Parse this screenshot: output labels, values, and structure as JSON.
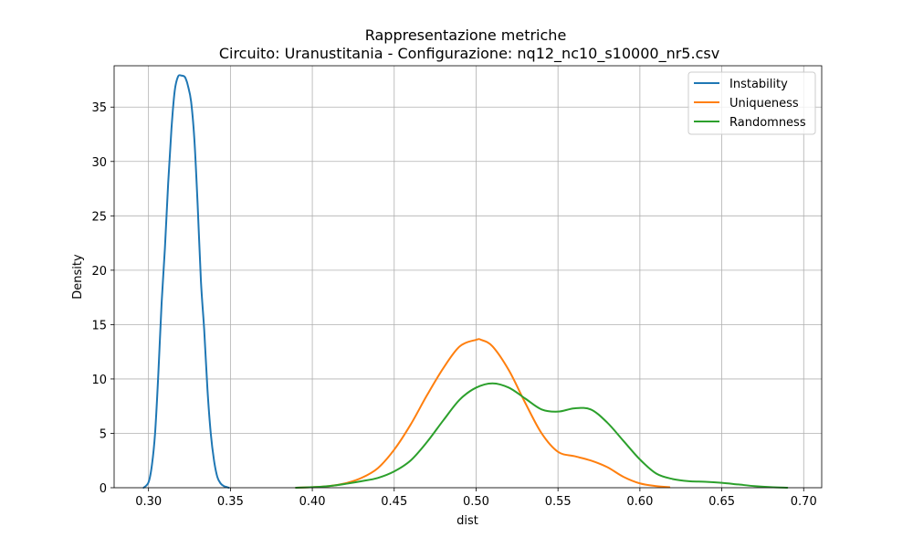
{
  "chart_data": {
    "type": "line",
    "title": "Rappresentazione metriche",
    "subtitle": "Circuito: Uranustitania - Configurazione: nq12_nc10_s10000_nr5.csv",
    "xlabel": "dist",
    "ylabel": "Density",
    "xlim": [
      0.279,
      0.711
    ],
    "ylim": [
      0,
      38.8
    ],
    "xticks": [
      0.3,
      0.35,
      0.4,
      0.45,
      0.5,
      0.55,
      0.6,
      0.65,
      0.7
    ],
    "xtick_labels": [
      "0.30",
      "0.35",
      "0.40",
      "0.45",
      "0.50",
      "0.55",
      "0.60",
      "0.65",
      "0.70"
    ],
    "yticks": [
      0,
      5,
      10,
      15,
      20,
      25,
      30,
      35
    ],
    "ytick_labels": [
      "0",
      "5",
      "10",
      "15",
      "20",
      "25",
      "30",
      "35"
    ],
    "grid": true,
    "legend_position": "top-right",
    "series": [
      {
        "name": "Instability",
        "color": "#1f77b4",
        "x": [
          0.297,
          0.3,
          0.302,
          0.304,
          0.306,
          0.308,
          0.31,
          0.312,
          0.314,
          0.316,
          0.318,
          0.32,
          0.322,
          0.323,
          0.324,
          0.326,
          0.328,
          0.33,
          0.332,
          0.334,
          0.336,
          0.338,
          0.34,
          0.342,
          0.344,
          0.346,
          0.348,
          0.349
        ],
        "y": [
          0.0,
          0.5,
          2.0,
          5.0,
          10.5,
          17.0,
          22.0,
          28.0,
          33.0,
          36.5,
          37.8,
          37.9,
          37.8,
          37.5,
          37.0,
          35.5,
          32.0,
          26.0,
          19.0,
          14.5,
          9.0,
          5.0,
          2.5,
          1.0,
          0.4,
          0.15,
          0.05,
          0.0
        ]
      },
      {
        "name": "Uniqueness",
        "color": "#ff7f0e",
        "x": [
          0.39,
          0.4,
          0.41,
          0.42,
          0.43,
          0.44,
          0.45,
          0.46,
          0.47,
          0.48,
          0.49,
          0.5,
          0.503,
          0.51,
          0.52,
          0.53,
          0.54,
          0.55,
          0.56,
          0.57,
          0.58,
          0.59,
          0.6,
          0.61,
          0.618
        ],
        "y": [
          0.0,
          0.05,
          0.15,
          0.4,
          0.9,
          1.8,
          3.5,
          5.8,
          8.5,
          11.0,
          13.0,
          13.6,
          13.6,
          13.0,
          10.8,
          7.8,
          5.0,
          3.3,
          2.9,
          2.5,
          1.9,
          1.0,
          0.4,
          0.15,
          0.05
        ]
      },
      {
        "name": "Randomness",
        "color": "#2ca02c",
        "x": [
          0.39,
          0.4,
          0.41,
          0.42,
          0.43,
          0.44,
          0.45,
          0.46,
          0.47,
          0.48,
          0.49,
          0.5,
          0.51,
          0.52,
          0.53,
          0.54,
          0.55,
          0.56,
          0.57,
          0.58,
          0.59,
          0.6,
          0.61,
          0.62,
          0.63,
          0.64,
          0.65,
          0.66,
          0.67,
          0.68,
          0.69
        ],
        "y": [
          0.0,
          0.05,
          0.15,
          0.35,
          0.6,
          0.9,
          1.5,
          2.5,
          4.2,
          6.2,
          8.1,
          9.2,
          9.6,
          9.2,
          8.2,
          7.2,
          7.0,
          7.3,
          7.2,
          6.0,
          4.3,
          2.6,
          1.3,
          0.8,
          0.6,
          0.55,
          0.45,
          0.3,
          0.15,
          0.05,
          0.0
        ]
      }
    ]
  }
}
